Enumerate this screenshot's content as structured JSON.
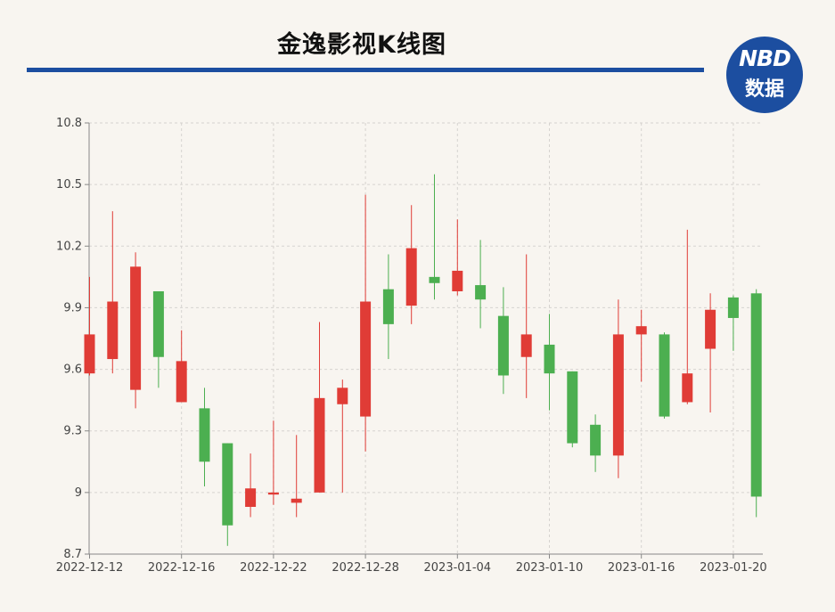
{
  "header": {
    "title": "金逸影视K线图",
    "logo_top": "NBD",
    "logo_bottom": "数据"
  },
  "colors": {
    "up": "#e03c36",
    "down": "#4caf50",
    "brand": "#1c4ea0",
    "grid": "#d6d3cf",
    "background": "#f8f5f0"
  },
  "chart_data": {
    "type": "candlestick",
    "title": "金逸影视K线图",
    "xlabel": "",
    "ylabel": "",
    "ylim": [
      8.7,
      10.8
    ],
    "yticks": [
      8.7,
      9,
      9.3,
      9.6,
      9.9,
      10.2,
      10.5,
      10.8
    ],
    "ytick_labels": [
      "8.7",
      "9",
      "9.3",
      "9.6",
      "9.9",
      "10.2",
      "10.5",
      "10.8"
    ],
    "xtick_labels": [
      "2022-12-12",
      "2022-12-16",
      "2022-12-22",
      "2022-12-28",
      "2023-01-04",
      "2023-01-10",
      "2023-01-16",
      "2023-01-20"
    ],
    "xtick_index": [
      0,
      4,
      8,
      12,
      16,
      20,
      24,
      28
    ],
    "grid": true,
    "candles": [
      {
        "date": "2022-12-12",
        "open": 9.58,
        "close": 9.77,
        "low": 9.57,
        "high": 10.05
      },
      {
        "date": "2022-12-13",
        "open": 9.65,
        "close": 9.93,
        "low": 9.58,
        "high": 10.37
      },
      {
        "date": "2022-12-14",
        "open": 9.5,
        "close": 10.1,
        "low": 9.41,
        "high": 10.17
      },
      {
        "date": "2022-12-15",
        "open": 9.98,
        "close": 9.66,
        "low": 9.51,
        "high": 9.98
      },
      {
        "date": "2022-12-16",
        "open": 9.44,
        "close": 9.64,
        "low": 9.44,
        "high": 9.79
      },
      {
        "date": "2022-12-19",
        "open": 9.41,
        "close": 9.15,
        "low": 9.03,
        "high": 9.51
      },
      {
        "date": "2022-12-20",
        "open": 9.24,
        "close": 8.84,
        "low": 8.74,
        "high": 9.24
      },
      {
        "date": "2022-12-21",
        "open": 8.93,
        "close": 9.02,
        "low": 8.88,
        "high": 9.19
      },
      {
        "date": "2022-12-22",
        "open": 8.99,
        "close": 9.0,
        "low": 8.94,
        "high": 9.35
      },
      {
        "date": "2022-12-23",
        "open": 8.95,
        "close": 8.97,
        "low": 8.88,
        "high": 9.28
      },
      {
        "date": "2022-12-26",
        "open": 9.0,
        "close": 9.46,
        "low": 9.0,
        "high": 9.83
      },
      {
        "date": "2022-12-27",
        "open": 9.43,
        "close": 9.51,
        "low": 9.0,
        "high": 9.55
      },
      {
        "date": "2022-12-28",
        "open": 9.37,
        "close": 9.93,
        "low": 9.2,
        "high": 10.45
      },
      {
        "date": "2022-12-29",
        "open": 9.99,
        "close": 9.82,
        "low": 9.65,
        "high": 10.16
      },
      {
        "date": "2022-12-30",
        "open": 9.91,
        "close": 10.19,
        "low": 9.82,
        "high": 10.4
      },
      {
        "date": "2023-01-03",
        "open": 10.05,
        "close": 10.02,
        "low": 9.94,
        "high": 10.55
      },
      {
        "date": "2023-01-04",
        "open": 9.98,
        "close": 10.08,
        "low": 9.96,
        "high": 10.33
      },
      {
        "date": "2023-01-05",
        "open": 10.01,
        "close": 9.94,
        "low": 9.8,
        "high": 10.23
      },
      {
        "date": "2023-01-06",
        "open": 9.86,
        "close": 9.57,
        "low": 9.48,
        "high": 10.0
      },
      {
        "date": "2023-01-09",
        "open": 9.66,
        "close": 9.77,
        "low": 9.46,
        "high": 10.16
      },
      {
        "date": "2023-01-10",
        "open": 9.72,
        "close": 9.58,
        "low": 9.4,
        "high": 9.87
      },
      {
        "date": "2023-01-11",
        "open": 9.59,
        "close": 9.24,
        "low": 9.22,
        "high": 9.59
      },
      {
        "date": "2023-01-12",
        "open": 9.33,
        "close": 9.18,
        "low": 9.1,
        "high": 9.38
      },
      {
        "date": "2023-01-13",
        "open": 9.18,
        "close": 9.77,
        "low": 9.07,
        "high": 9.94
      },
      {
        "date": "2023-01-16",
        "open": 9.77,
        "close": 9.81,
        "low": 9.54,
        "high": 9.89
      },
      {
        "date": "2023-01-17",
        "open": 9.77,
        "close": 9.37,
        "low": 9.36,
        "high": 9.78
      },
      {
        "date": "2023-01-18",
        "open": 9.44,
        "close": 9.58,
        "low": 9.43,
        "high": 10.28
      },
      {
        "date": "2023-01-19",
        "open": 9.7,
        "close": 9.89,
        "low": 9.39,
        "high": 9.97
      },
      {
        "date": "2023-01-20",
        "open": 9.95,
        "close": 9.85,
        "low": 9.69,
        "high": 9.96
      },
      {
        "date": "2023-01-30",
        "open": 9.97,
        "close": 8.98,
        "low": 8.88,
        "high": 9.99
      }
    ]
  }
}
